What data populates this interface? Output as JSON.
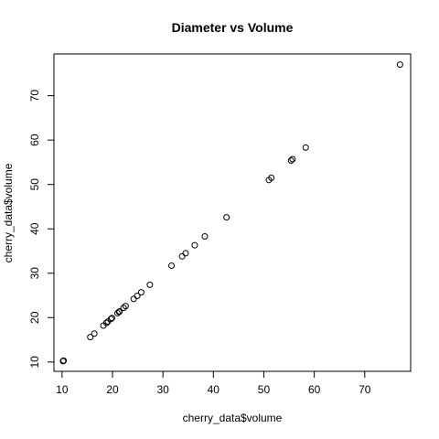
{
  "chart_data": {
    "type": "scatter",
    "title": "Diameter vs Volume",
    "xlabel": "cherry_data$volume",
    "ylabel": "cherry_data$volume",
    "xlim": [
      8.4,
      79.1
    ],
    "ylim": [
      7.9,
      79.4
    ],
    "x_ticks": [
      10,
      20,
      30,
      40,
      50,
      60,
      70
    ],
    "y_ticks": [
      10,
      20,
      30,
      40,
      50,
      60,
      70
    ],
    "grid": false,
    "points": [
      {
        "x": 10.3,
        "y": 10.3
      },
      {
        "x": 10.3,
        "y": 10.3
      },
      {
        "x": 10.2,
        "y": 10.2
      },
      {
        "x": 16.4,
        "y": 16.4
      },
      {
        "x": 18.8,
        "y": 18.8
      },
      {
        "x": 19.7,
        "y": 19.7
      },
      {
        "x": 15.6,
        "y": 15.6
      },
      {
        "x": 18.2,
        "y": 18.2
      },
      {
        "x": 22.6,
        "y": 22.6
      },
      {
        "x": 19.9,
        "y": 19.9
      },
      {
        "x": 24.2,
        "y": 24.2
      },
      {
        "x": 21.0,
        "y": 21.0
      },
      {
        "x": 21.4,
        "y": 21.4
      },
      {
        "x": 21.3,
        "y": 21.3
      },
      {
        "x": 19.1,
        "y": 19.1
      },
      {
        "x": 22.2,
        "y": 22.2
      },
      {
        "x": 33.8,
        "y": 33.8
      },
      {
        "x": 27.4,
        "y": 27.4
      },
      {
        "x": 25.7,
        "y": 25.7
      },
      {
        "x": 24.9,
        "y": 24.9
      },
      {
        "x": 34.5,
        "y": 34.5
      },
      {
        "x": 31.7,
        "y": 31.7
      },
      {
        "x": 36.3,
        "y": 36.3
      },
      {
        "x": 38.3,
        "y": 38.3
      },
      {
        "x": 42.6,
        "y": 42.6
      },
      {
        "x": 55.4,
        "y": 55.4
      },
      {
        "x": 55.7,
        "y": 55.7
      },
      {
        "x": 58.3,
        "y": 58.3
      },
      {
        "x": 51.5,
        "y": 51.5
      },
      {
        "x": 51.0,
        "y": 51.0
      },
      {
        "x": 77.0,
        "y": 77.0
      }
    ]
  }
}
